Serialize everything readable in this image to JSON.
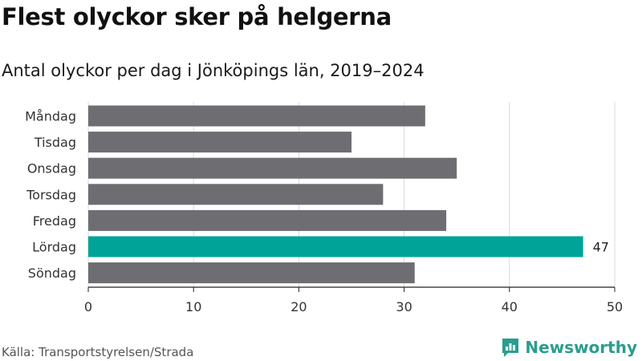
{
  "title": "Flest olyckor sker på helgerna",
  "subtitle": "Antal olyckor per dag i Jönköpings län, 2019–2024",
  "source": "Källa: Transportstyrelsen/Strada",
  "logo_text": "Newsworthy",
  "colors": {
    "bar": "#6e6d72",
    "highlight": "#00a398",
    "grid": "#d9d9d9",
    "brand": "#2a9d8f"
  },
  "chart_data": {
    "type": "bar",
    "orientation": "horizontal",
    "categories": [
      "Måndag",
      "Tisdag",
      "Onsdag",
      "Torsdag",
      "Fredag",
      "Lördag",
      "Söndag"
    ],
    "values": [
      32,
      25,
      35,
      28,
      34,
      47,
      31
    ],
    "highlight_index": 5,
    "data_labels": {
      "5": "47"
    },
    "xlim": [
      0,
      50
    ],
    "xticks": [
      0,
      10,
      20,
      30,
      40,
      50
    ],
    "grid": true,
    "legend": "none"
  }
}
